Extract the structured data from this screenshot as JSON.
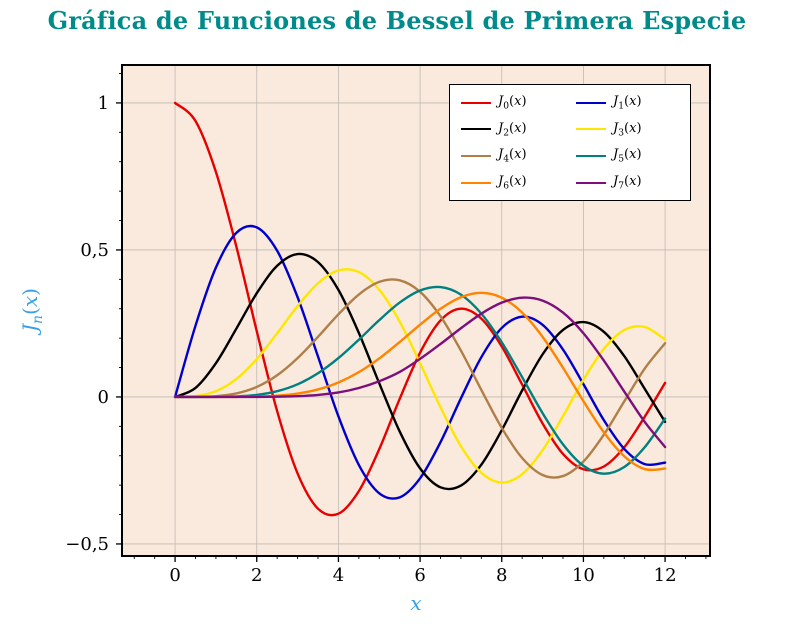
{
  "chart_data": {
    "type": "line",
    "title": "Gráfica de Funciones de Bessel de Primera Especie",
    "xlabel": "x",
    "ylabel": "J_n(x)",
    "xlim": [
      -1.3,
      13.1
    ],
    "ylim": [
      -0.541,
      1.129
    ],
    "grid": "major",
    "legend_position": "top-right",
    "x_ticks": {
      "values": [
        0,
        2,
        4,
        6,
        8,
        10,
        12
      ],
      "labels": [
        "0",
        "2",
        "4",
        "6",
        "8",
        "10",
        "12"
      ]
    },
    "y_ticks": {
      "values": [
        -0.5,
        0,
        0.5,
        1
      ],
      "labels": [
        "−0,5",
        "0",
        "0,5",
        "1"
      ]
    },
    "x_minor_step": 0.5,
    "y_minor_step": 0.1,
    "x": [
      0,
      0.5,
      1,
      1.5,
      2,
      2.5,
      3,
      3.5,
      4,
      4.5,
      5,
      5.5,
      6,
      6.5,
      7,
      7.5,
      8,
      8.5,
      9,
      9.5,
      10,
      10.5,
      11,
      11.5,
      12
    ],
    "series": [
      {
        "name": "J_0(x)",
        "color": "#e60000",
        "values": [
          1.0,
          0.9385,
          0.7652,
          0.5118,
          0.2239,
          -0.0484,
          -0.2601,
          -0.3801,
          -0.3971,
          -0.3205,
          -0.1776,
          -0.0068,
          0.1506,
          0.2601,
          0.3001,
          0.2663,
          0.1717,
          0.0419,
          -0.0903,
          -0.1939,
          -0.2459,
          -0.2366,
          -0.1712,
          -0.0677,
          0.0477
        ]
      },
      {
        "name": "J_1(x)",
        "color": "#0000cd",
        "values": [
          0.0,
          0.2423,
          0.4401,
          0.5579,
          0.5767,
          0.4971,
          0.3391,
          0.1374,
          -0.066,
          -0.2311,
          -0.3276,
          -0.3414,
          -0.2767,
          -0.1538,
          -0.0047,
          0.1352,
          0.2346,
          0.2731,
          0.2453,
          0.1613,
          0.0435,
          -0.0789,
          -0.1768,
          -0.2284,
          -0.2234
        ]
      },
      {
        "name": "J_2(x)",
        "color": "#000000",
        "values": [
          0.0,
          0.0306,
          0.1149,
          0.2321,
          0.3528,
          0.4461,
          0.4861,
          0.4586,
          0.3641,
          0.2178,
          0.0466,
          -0.1173,
          -0.2429,
          -0.3074,
          -0.3014,
          -0.2303,
          -0.113,
          0.0223,
          0.1448,
          0.2279,
          0.2546,
          0.2216,
          0.139,
          0.0279,
          -0.0849
        ]
      },
      {
        "name": "J_3(x)",
        "color": "#ffe600",
        "values": [
          0.0,
          0.0026,
          0.0196,
          0.061,
          0.1289,
          0.2166,
          0.3091,
          0.3868,
          0.4302,
          0.4247,
          0.3648,
          0.2561,
          0.1148,
          -0.0353,
          -0.1676,
          -0.2581,
          -0.2911,
          -0.2626,
          -0.1809,
          -0.0653,
          0.0584,
          0.1633,
          0.2273,
          0.2381,
          0.1951
        ]
      },
      {
        "name": "J_4(x)",
        "color": "#b07f48",
        "values": [
          0.0,
          0.0002,
          0.0025,
          0.0118,
          0.034,
          0.0738,
          0.132,
          0.2044,
          0.2811,
          0.3484,
          0.3912,
          0.3967,
          0.3576,
          0.2743,
          0.1578,
          0.0238,
          -0.1054,
          -0.2077,
          -0.2655,
          -0.2691,
          -0.2196,
          -0.1283,
          -0.015,
          0.0963,
          0.1825
        ]
      },
      {
        "name": "J_5(x)",
        "color": "#008080",
        "values": [
          0.0,
          0.0,
          0.0002,
          0.0018,
          0.007,
          0.0195,
          0.043,
          0.0804,
          0.1321,
          0.1947,
          0.2611,
          0.3209,
          0.3621,
          0.3736,
          0.3479,
          0.2833,
          0.1858,
          0.0671,
          -0.055,
          -0.1613,
          -0.2341,
          -0.2611,
          -0.2383,
          -0.1711,
          -0.0735
        ]
      },
      {
        "name": "J_6(x)",
        "color": "#ff8400",
        "values": [
          0.0,
          0.0,
          0.0,
          0.0002,
          0.0012,
          0.0042,
          0.0114,
          0.0254,
          0.0491,
          0.0843,
          0.131,
          0.1868,
          0.2458,
          0.2999,
          0.3392,
          0.3541,
          0.3376,
          0.2867,
          0.2043,
          0.0993,
          -0.0145,
          -0.1203,
          -0.2016,
          -0.2453,
          -0.2437
        ]
      },
      {
        "name": "J_7(x)",
        "color": "#7d0f7d",
        "values": [
          0.0,
          0.0,
          0.0,
          0.0,
          0.0002,
          0.0008,
          0.0025,
          0.0067,
          0.0152,
          0.0304,
          0.0534,
          0.085,
          0.1296,
          0.1801,
          0.2336,
          0.2832,
          0.3206,
          0.3376,
          0.3275,
          0.2868,
          0.2167,
          0.1236,
          0.0184,
          -0.0846,
          -0.1703
        ]
      }
    ]
  },
  "colors": {
    "title": "#008b8b",
    "axis_label": "#38a0e8",
    "plot_background": "#faeadd",
    "grid": "#c0bab2",
    "frame": "#000000",
    "tick_label": "#000000",
    "legend_background": "#ffffff",
    "legend_border": "#000000"
  }
}
